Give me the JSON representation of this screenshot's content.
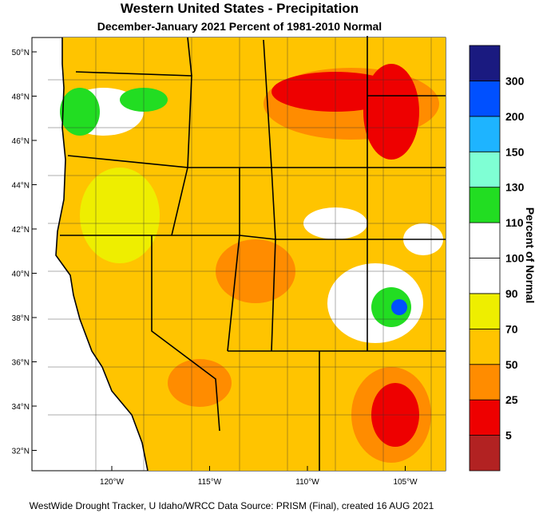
{
  "header": {
    "title": "Western United States - Precipitation",
    "subtitle": "December-January 2021  Percent of 1981-2010 Normal"
  },
  "map": {
    "lat_labels": [
      "50°N",
      "48°N",
      "46°N",
      "44°N",
      "42°N",
      "40°N",
      "38°N",
      "36°N",
      "34°N",
      "32°N"
    ],
    "lon_labels": [
      "120°W",
      "115°W",
      "110°W",
      "105°W"
    ]
  },
  "colorbar": {
    "title": "Percent of Normal",
    "colors": [
      "#b22222",
      "#ee0000",
      "#ff8c00",
      "#ffc400",
      "#eeee00",
      "#ffffff",
      "#ffffff",
      "#22dd22",
      "#7fffd4",
      "#1eb4ff",
      "#0050ff",
      "#1a1a80"
    ],
    "labels": [
      "5",
      "25",
      "50",
      "70",
      "90",
      "100",
      "110",
      "130",
      "150",
      "200",
      "300"
    ]
  },
  "footer": "WestWide Drought Tracker, U Idaho/WRCC Data Source: PRISM (Final), created 16 AUG 2021"
}
